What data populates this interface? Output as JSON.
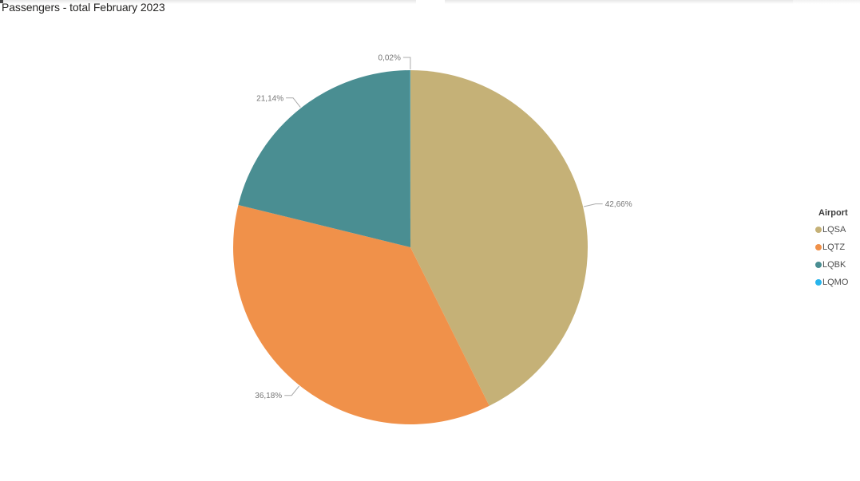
{
  "chart_data": {
    "type": "pie",
    "title": "Passengers - total February 2023",
    "legend": {
      "title": "Airport",
      "position": "right"
    },
    "value_format": "percent with comma decimal separator",
    "rotation": "clockwise from 12 o'clock",
    "slices": [
      {
        "category": "LQSA",
        "value_pct": 42.66,
        "display_label": "42,66%",
        "color": "#c5b177"
      },
      {
        "category": "LQTZ",
        "value_pct": 36.18,
        "display_label": "36,18%",
        "color": "#f0914a"
      },
      {
        "category": "LQBK",
        "value_pct": 21.14,
        "display_label": "21,14%",
        "color": "#4a8e92"
      },
      {
        "category": "LQMO",
        "value_pct": 0.02,
        "display_label": "0,02%",
        "color": "#28b4ec"
      }
    ]
  },
  "colors": {
    "title_text": "#252423",
    "detail_label_text": "#767676",
    "leader_line": "#ababab",
    "legend_title_text": "#3a3a3a",
    "legend_item_text": "#4e4e4e",
    "tile_edge": "#e8e8e8"
  }
}
